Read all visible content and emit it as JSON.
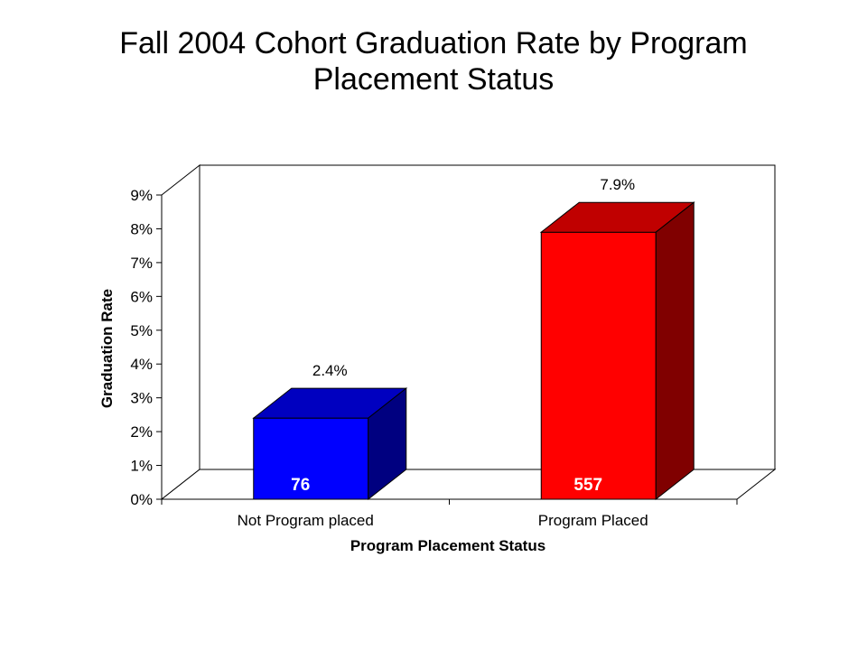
{
  "title_lines": [
    "Fall 2004 Cohort Graduation Rate by Program",
    "Placement Status"
  ],
  "chart_data": {
    "type": "bar",
    "title": "Fall 2004 Cohort Graduation Rate by Program Placement Status",
    "xlabel": "Program Placement Status",
    "ylabel": "Graduation Rate",
    "categories": [
      "Not Program placed",
      "Program Placed"
    ],
    "values": [
      2.4,
      7.9
    ],
    "value_labels": [
      "2.4%",
      "7.9%"
    ],
    "count_labels": [
      "76",
      "557"
    ],
    "colors": {
      "front": [
        "#0000ff",
        "#ff0000"
      ],
      "top": [
        "#0000c0",
        "#c00000"
      ],
      "side": [
        "#000080",
        "#800000"
      ]
    },
    "ylim": [
      0,
      9
    ],
    "yticks": [
      0,
      1,
      2,
      3,
      4,
      5,
      6,
      7,
      8,
      9
    ],
    "ytick_labels": [
      "0%",
      "1%",
      "2%",
      "3%",
      "4%",
      "5%",
      "6%",
      "7%",
      "8%",
      "9%"
    ],
    "three_d": true,
    "legend": "none",
    "grid": false
  }
}
